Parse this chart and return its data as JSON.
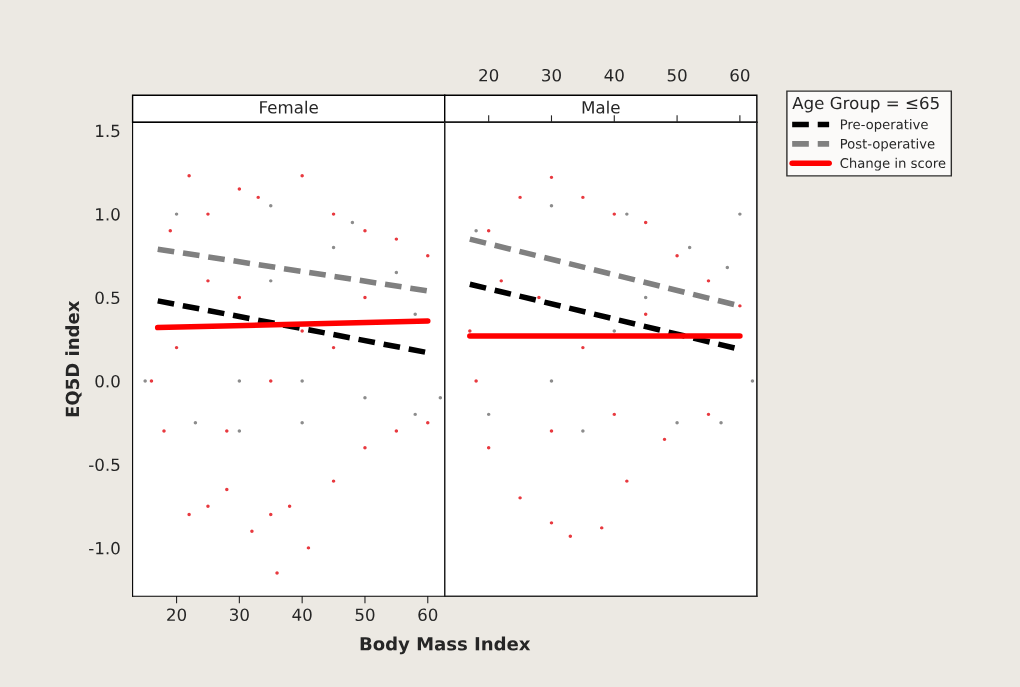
{
  "chart_data": [
    {
      "type": "scatter",
      "title": "Female",
      "xlabel": "Body Mass Index",
      "ylabel": "EQ5D index",
      "xlim": [
        13,
        62.7
      ],
      "xticks": [
        20,
        30,
        40,
        50,
        60
      ],
      "ylim": [
        -1.29,
        1.55
      ],
      "yticks": [
        {
          "value": -1.0,
          "label": "-1.0"
        },
        -0.5,
        {
          "value": 0.0,
          "label": "0.0"
        },
        0.5,
        {
          "value": 1.0,
          "label": "1.0"
        },
        1.5
      ],
      "grid": false,
      "legend": "right",
      "legend_title": "Age Group = ≤65",
      "series": [
        {
          "color": "#e8393f",
          "x": [
            22,
            30,
            40,
            33,
            25,
            45,
            50,
            55,
            60,
            19,
            16,
            18,
            22,
            25,
            28,
            32,
            35,
            38,
            41,
            45,
            50,
            55,
            60,
            36,
            30,
            35,
            40,
            28,
            45,
            50,
            20,
            25
          ],
          "values": [
            1.23,
            1.15,
            1.23,
            1.1,
            1.0,
            1.0,
            0.9,
            0.85,
            0.75,
            0.9,
            0.0,
            -0.3,
            -0.8,
            -0.75,
            -0.65,
            -0.9,
            -0.8,
            -0.75,
            -1.0,
            -0.6,
            -0.4,
            -0.3,
            -0.25,
            -1.15,
            0.5,
            0.0,
            0.3,
            -0.3,
            0.2,
            0.5,
            0.2,
            0.6
          ]
        },
        {
          "color": "#8c8c8c",
          "x": [
            20,
            35,
            48,
            55,
            58,
            62,
            15,
            23,
            30,
            40,
            50,
            58,
            30,
            40,
            45,
            35
          ],
          "values": [
            1.0,
            1.05,
            0.95,
            0.65,
            0.4,
            -0.1,
            0.0,
            -0.25,
            -0.3,
            -0.25,
            -0.1,
            -0.2,
            0.0,
            0.0,
            0.8,
            0.6
          ]
        },
        {
          "name": "Pre-operative",
          "type": "line",
          "line_style": "dashed",
          "color": "#000000",
          "x": [
            17,
            60
          ],
          "values": [
            0.48,
            0.17
          ]
        },
        {
          "name": "Post-operative",
          "type": "line",
          "line_style": "dashed",
          "color": "#808080",
          "x": [
            17,
            60
          ],
          "values": [
            0.79,
            0.54
          ]
        },
        {
          "name": "Change in score",
          "type": "line",
          "line_style": "solid",
          "color": "#ff0000",
          "x": [
            17,
            60
          ],
          "values": [
            0.32,
            0.36
          ]
        }
      ]
    },
    {
      "type": "scatter",
      "title": "Male",
      "xlim": [
        13,
        62.7
      ],
      "xticks": [
        20,
        30,
        40,
        50,
        60
      ],
      "x2lim": [
        13,
        62.7
      ],
      "x2ticks": [
        20,
        30,
        40,
        50,
        60
      ],
      "ylim": [
        -1.29,
        1.55
      ],
      "yticks": [
        -1.0,
        -0.5,
        0.0,
        0.5,
        1.0,
        1.5
      ],
      "tick_labels": false,
      "grid": false,
      "series": [
        {
          "color": "#e8393f",
          "x": [
            30,
            25,
            35,
            40,
            45,
            50,
            55,
            60,
            20,
            17,
            18,
            20,
            25,
            30,
            33,
            38,
            42,
            48,
            55,
            28,
            35,
            40,
            45,
            30,
            22
          ],
          "values": [
            1.22,
            1.1,
            1.1,
            1.0,
            0.95,
            0.75,
            0.6,
            0.45,
            0.9,
            0.3,
            0.0,
            -0.4,
            -0.7,
            -0.85,
            -0.93,
            -0.88,
            -0.6,
            -0.35,
            -0.2,
            0.5,
            0.2,
            -0.2,
            0.4,
            -0.3,
            0.6
          ]
        },
        {
          "color": "#8c8c8c",
          "x": [
            18,
            30,
            42,
            52,
            60,
            62,
            58,
            20,
            35,
            50,
            57,
            45,
            30,
            40
          ],
          "values": [
            0.9,
            1.05,
            1.0,
            0.8,
            1.0,
            0.0,
            0.68,
            -0.2,
            -0.3,
            -0.25,
            -0.25,
            0.5,
            0.0,
            0.3
          ]
        },
        {
          "type": "line",
          "line_style": "dashed",
          "color": "#000000",
          "x": [
            17,
            60
          ],
          "values": [
            0.58,
            0.19
          ]
        },
        {
          "type": "line",
          "line_style": "dashed",
          "color": "#808080",
          "x": [
            17,
            60
          ],
          "values": [
            0.85,
            0.45
          ]
        },
        {
          "type": "line",
          "line_style": "solid",
          "color": "#ff0000",
          "x": [
            17,
            60
          ],
          "values": [
            0.27,
            0.27
          ]
        }
      ]
    }
  ]
}
